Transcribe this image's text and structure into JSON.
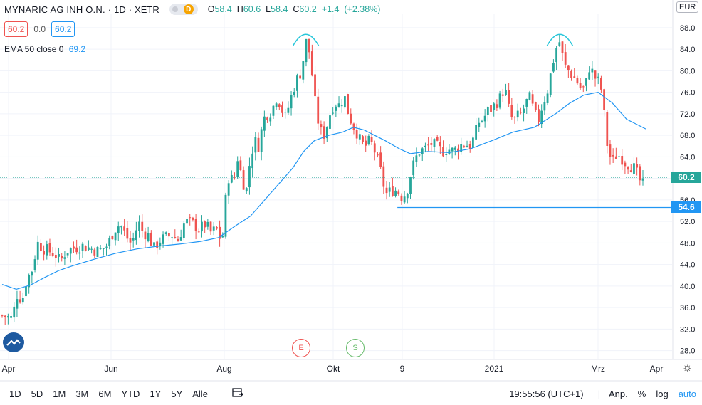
{
  "symbol": {
    "name": "MYNARIC AG INH O.N.",
    "interval": "1D",
    "exchange": "XETR",
    "separator": "·",
    "badge": "D",
    "ohlc": {
      "o": "58.4",
      "h": "60.6",
      "l": "58.4",
      "c": "60.2",
      "change": "+1.4",
      "pct": "(+2.38%)"
    }
  },
  "quote": {
    "bid": "60.2",
    "spread": "0.0",
    "ask": "60.2"
  },
  "indicator": {
    "label": "EMA 50 close 0",
    "value": "69.2"
  },
  "currency": "EUR",
  "events": [
    {
      "letter": "E"
    },
    {
      "letter": "S"
    }
  ],
  "bottom_bar": {
    "timeframes": [
      "1D",
      "5D",
      "1M",
      "3M",
      "6M",
      "YTD",
      "1Y",
      "5Y",
      "Alle"
    ],
    "clock": "19:55:56 (UTC+1)",
    "right": [
      "Anp.",
      "%",
      "log",
      "auto"
    ]
  },
  "colors": {
    "up": "#26a69a",
    "down": "#ef5350",
    "ema": "#2196f3",
    "grid": "#f0f3fa"
  },
  "chart_data": {
    "type": "candlestick",
    "y_axis": {
      "ticks": [
        28.0,
        32.0,
        36.0,
        40.0,
        44.0,
        48.0,
        52.0,
        56.0,
        60.0,
        64.0,
        68.0,
        72.0,
        76.0,
        80.0,
        84.0,
        88.0
      ],
      "range": [
        26.5,
        90.5
      ]
    },
    "x_axis": {
      "labels": [
        "Apr",
        "Jun",
        "Aug",
        "Okt",
        "9",
        "2021",
        "Mrz",
        "Apr"
      ]
    },
    "current_price": 60.2,
    "horizontal_line": 54.6,
    "price_labels": [
      "60.2",
      "54.6"
    ],
    "ema_label": "EMA 50",
    "ema": [
      {
        "d": 0,
        "v": 40.3
      },
      {
        "d": 20,
        "v": 39.4
      },
      {
        "d": 40,
        "v": 40.2
      },
      {
        "d": 60,
        "v": 41.6
      },
      {
        "d": 80,
        "v": 42.9
      },
      {
        "d": 100,
        "v": 43.8
      },
      {
        "d": 130,
        "v": 45.0
      },
      {
        "d": 160,
        "v": 46.1
      },
      {
        "d": 190,
        "v": 46.9
      },
      {
        "d": 220,
        "v": 47.4
      },
      {
        "d": 250,
        "v": 47.8
      },
      {
        "d": 280,
        "v": 48.3
      },
      {
        "d": 305,
        "v": 49.0
      },
      {
        "d": 330,
        "v": 51.3
      },
      {
        "d": 350,
        "v": 53.0
      },
      {
        "d": 370,
        "v": 56.0
      },
      {
        "d": 390,
        "v": 59.0
      },
      {
        "d": 410,
        "v": 62.0
      },
      {
        "d": 425,
        "v": 65.0
      },
      {
        "d": 440,
        "v": 67.0
      },
      {
        "d": 460,
        "v": 68.0
      },
      {
        "d": 480,
        "v": 68.6
      },
      {
        "d": 495,
        "v": 69.5
      },
      {
        "d": 510,
        "v": 69.0
      },
      {
        "d": 525,
        "v": 68.0
      },
      {
        "d": 540,
        "v": 67.0
      },
      {
        "d": 560,
        "v": 65.5
      },
      {
        "d": 575,
        "v": 64.6
      },
      {
        "d": 600,
        "v": 65.0
      },
      {
        "d": 630,
        "v": 64.8
      },
      {
        "d": 660,
        "v": 65.5
      },
      {
        "d": 690,
        "v": 67.0
      },
      {
        "d": 720,
        "v": 68.6
      },
      {
        "d": 750,
        "v": 69.5
      },
      {
        "d": 780,
        "v": 72.0
      },
      {
        "d": 800,
        "v": 74.0
      },
      {
        "d": 820,
        "v": 75.5
      },
      {
        "d": 840,
        "v": 76.0
      },
      {
        "d": 860,
        "v": 74.0
      },
      {
        "d": 880,
        "v": 71.0
      },
      {
        "d": 907,
        "v": 69.2
      }
    ],
    "price_path": [
      [
        0,
        34.5
      ],
      [
        14,
        34.0
      ],
      [
        22,
        39.0
      ],
      [
        28,
        37.0
      ],
      [
        34,
        41.0
      ],
      [
        42,
        43.0
      ],
      [
        50,
        48.0
      ],
      [
        58,
        47.0
      ],
      [
        66,
        46.5
      ],
      [
        74,
        46.0
      ],
      [
        82,
        44.5
      ],
      [
        90,
        46.5
      ],
      [
        100,
        47.0
      ],
      [
        112,
        47.5
      ],
      [
        124,
        47.0
      ],
      [
        136,
        46.5
      ],
      [
        148,
        47.5
      ],
      [
        158,
        50.5
      ],
      [
        166,
        51.5
      ],
      [
        174,
        49.5
      ],
      [
        180,
        48.0
      ],
      [
        186,
        49.0
      ],
      [
        192,
        52.0
      ],
      [
        198,
        50.0
      ],
      [
        206,
        49.5
      ],
      [
        214,
        47.0
      ],
      [
        222,
        48.5
      ],
      [
        230,
        49.0
      ],
      [
        240,
        49.5
      ],
      [
        248,
        48.5
      ],
      [
        256,
        51.5
      ],
      [
        262,
        52.0
      ],
      [
        270,
        51.5
      ],
      [
        278,
        50.5
      ],
      [
        286,
        51.5
      ],
      [
        294,
        50.0
      ],
      [
        302,
        50.5
      ],
      [
        310,
        48.0
      ],
      [
        314,
        55.0
      ],
      [
        320,
        61.0
      ],
      [
        326,
        59.0
      ],
      [
        332,
        64.0
      ],
      [
        338,
        60.0
      ],
      [
        344,
        57.5
      ],
      [
        350,
        64.0
      ],
      [
        356,
        67.0
      ],
      [
        362,
        66.0
      ],
      [
        368,
        71.0
      ],
      [
        374,
        72.0
      ],
      [
        380,
        72.5
      ],
      [
        386,
        75.0
      ],
      [
        392,
        74.0
      ],
      [
        398,
        71.0
      ],
      [
        404,
        73.5
      ],
      [
        410,
        76.5
      ],
      [
        416,
        78.5
      ],
      [
        422,
        80.0
      ],
      [
        428,
        85.5
      ],
      [
        434,
        83.0
      ],
      [
        440,
        75.0
      ],
      [
        446,
        70.0
      ],
      [
        452,
        67.5
      ],
      [
        458,
        70.0
      ],
      [
        464,
        73.0
      ],
      [
        470,
        74.0
      ],
      [
        476,
        73.5
      ],
      [
        482,
        75.5
      ],
      [
        488,
        72.0
      ],
      [
        494,
        70.0
      ],
      [
        500,
        68.5
      ],
      [
        506,
        66.5
      ],
      [
        512,
        66.0
      ],
      [
        518,
        67.0
      ],
      [
        524,
        65.5
      ],
      [
        530,
        63.0
      ],
      [
        536,
        60.0
      ],
      [
        540,
        57.0
      ],
      [
        546,
        57.5
      ],
      [
        552,
        58.0
      ],
      [
        558,
        57.5
      ],
      [
        564,
        56.5
      ],
      [
        570,
        57.5
      ],
      [
        576,
        61.0
      ],
      [
        582,
        63.5
      ],
      [
        588,
        65.0
      ],
      [
        596,
        65.5
      ],
      [
        604,
        66.5
      ],
      [
        612,
        66.0
      ],
      [
        620,
        65.0
      ],
      [
        628,
        65.5
      ],
      [
        636,
        65.0
      ],
      [
        644,
        66.0
      ],
      [
        652,
        66.5
      ],
      [
        660,
        66.0
      ],
      [
        666,
        68.0
      ],
      [
        672,
        70.5
      ],
      [
        678,
        71.0
      ],
      [
        684,
        72.5
      ],
      [
        690,
        73.0
      ],
      [
        696,
        74.0
      ],
      [
        702,
        75.0
      ],
      [
        708,
        77.0
      ],
      [
        714,
        73.0
      ],
      [
        720,
        70.5
      ],
      [
        726,
        71.5
      ],
      [
        732,
        72.0
      ],
      [
        738,
        74.0
      ],
      [
        744,
        75.0
      ],
      [
        750,
        72.0
      ],
      [
        756,
        71.0
      ],
      [
        762,
        74.0
      ],
      [
        768,
        76.0
      ],
      [
        774,
        80.0
      ],
      [
        780,
        84.0
      ],
      [
        786,
        85.5
      ],
      [
        792,
        81.0
      ],
      [
        798,
        80.0
      ],
      [
        804,
        79.0
      ],
      [
        810,
        78.0
      ],
      [
        816,
        76.5
      ],
      [
        822,
        77.0
      ],
      [
        828,
        81.0
      ],
      [
        834,
        79.0
      ],
      [
        840,
        78.0
      ],
      [
        846,
        76.0
      ],
      [
        850,
        69.0
      ],
      [
        854,
        65.0
      ],
      [
        860,
        63.0
      ],
      [
        866,
        64.5
      ],
      [
        872,
        64.0
      ],
      [
        878,
        63.0
      ],
      [
        884,
        62.5
      ],
      [
        890,
        62.0
      ],
      [
        896,
        60.5
      ],
      [
        902,
        58.5
      ],
      [
        907,
        60.2
      ]
    ]
  }
}
